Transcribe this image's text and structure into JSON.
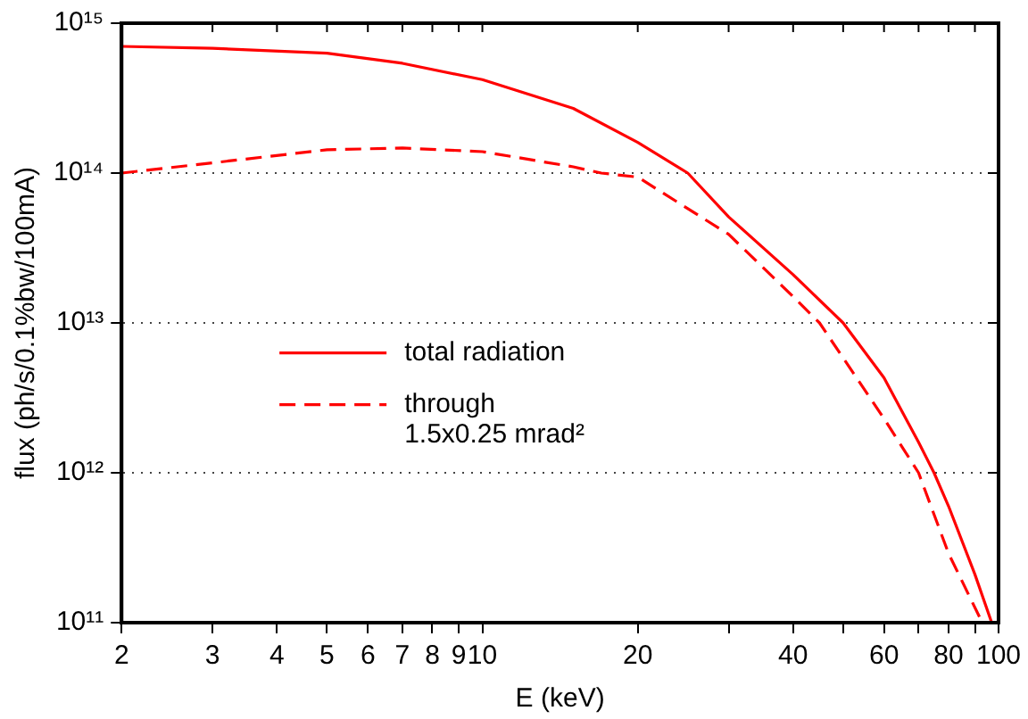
{
  "chart_data": {
    "type": "line",
    "xlabel": "E (keV)",
    "ylabel": "flux (ph/s/0.1%bw/100mA)",
    "log": "xy",
    "grid": "y",
    "legend": "left",
    "marker": "none",
    "xlim": [
      2,
      100
    ],
    "ylim": [
      100000000000.0,
      1000000000000000.0
    ],
    "xticks": [
      2,
      3,
      4,
      5,
      6,
      7,
      8,
      9,
      10,
      20,
      {
        "value": 30,
        "label": null
      },
      40,
      {
        "value": 50,
        "label": null
      },
      60,
      {
        "value": 70,
        "label": null
      },
      80,
      {
        "value": 90,
        "label": null
      },
      100
    ],
    "yticks": [
      {
        "value": 100000000000.0,
        "label": "10¹¹"
      },
      {
        "value": 1000000000000.0,
        "label": "10¹²"
      },
      {
        "value": 10000000000000.0,
        "label": "10¹³"
      },
      {
        "value": 100000000000000.0,
        "label": "10¹⁴"
      },
      {
        "value": 1000000000000000.0,
        "label": "10¹⁵"
      }
    ],
    "series": [
      {
        "name": "total radiation",
        "color": "#ff0000",
        "line_style": "solid",
        "x": [
          2,
          3,
          5,
          7,
          10,
          15,
          20,
          25,
          30,
          40,
          50,
          60,
          70,
          75,
          80,
          90,
          97
        ],
        "values": [
          700000000000000.0,
          680000000000000.0,
          630000000000000.0,
          540000000000000.0,
          420000000000000.0,
          270000000000000.0,
          160000000000000.0,
          100000000000000.0,
          51000000000000.0,
          21000000000000.0,
          10000000000000.0,
          4300000000000.0,
          1600000000000.0,
          1000000000000.0,
          600000000000.0,
          210000000000.0,
          100000000000.0
        ]
      },
      {
        "name": "through 1.5x0.25 mrad²",
        "color": "#ff0000",
        "line_style": "dashed",
        "x": [
          2,
          3,
          5,
          7,
          10,
          15,
          17,
          20,
          30,
          40,
          45,
          60,
          70,
          80,
          93
        ],
        "values": [
          100000000000000.0,
          117000000000000.0,
          143000000000000.0,
          147000000000000.0,
          139000000000000.0,
          110000000000000.0,
          100000000000000.0,
          94000000000000.0,
          39000000000000.0,
          15000000000000.0,
          10000000000000.0,
          2300000000000.0,
          1000000000000.0,
          290000000000.0,
          100000000000.0
        ]
      }
    ]
  }
}
